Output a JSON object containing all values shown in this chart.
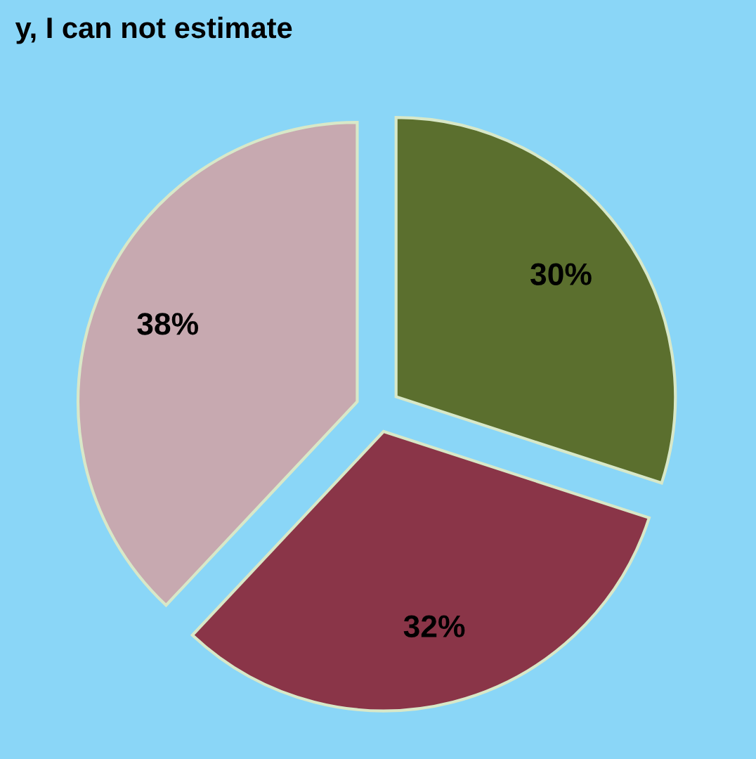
{
  "chart_data": {
    "type": "pie",
    "categories": [
      null,
      null,
      null
    ],
    "values": [
      30,
      32,
      38
    ],
    "colors": [
      "#5b6f2e",
      "#8a3548",
      "#c7a9b0"
    ],
    "value_labels": [
      "30%",
      "32%",
      "38%"
    ],
    "annotations": [
      "y, I can not estimate"
    ]
  }
}
